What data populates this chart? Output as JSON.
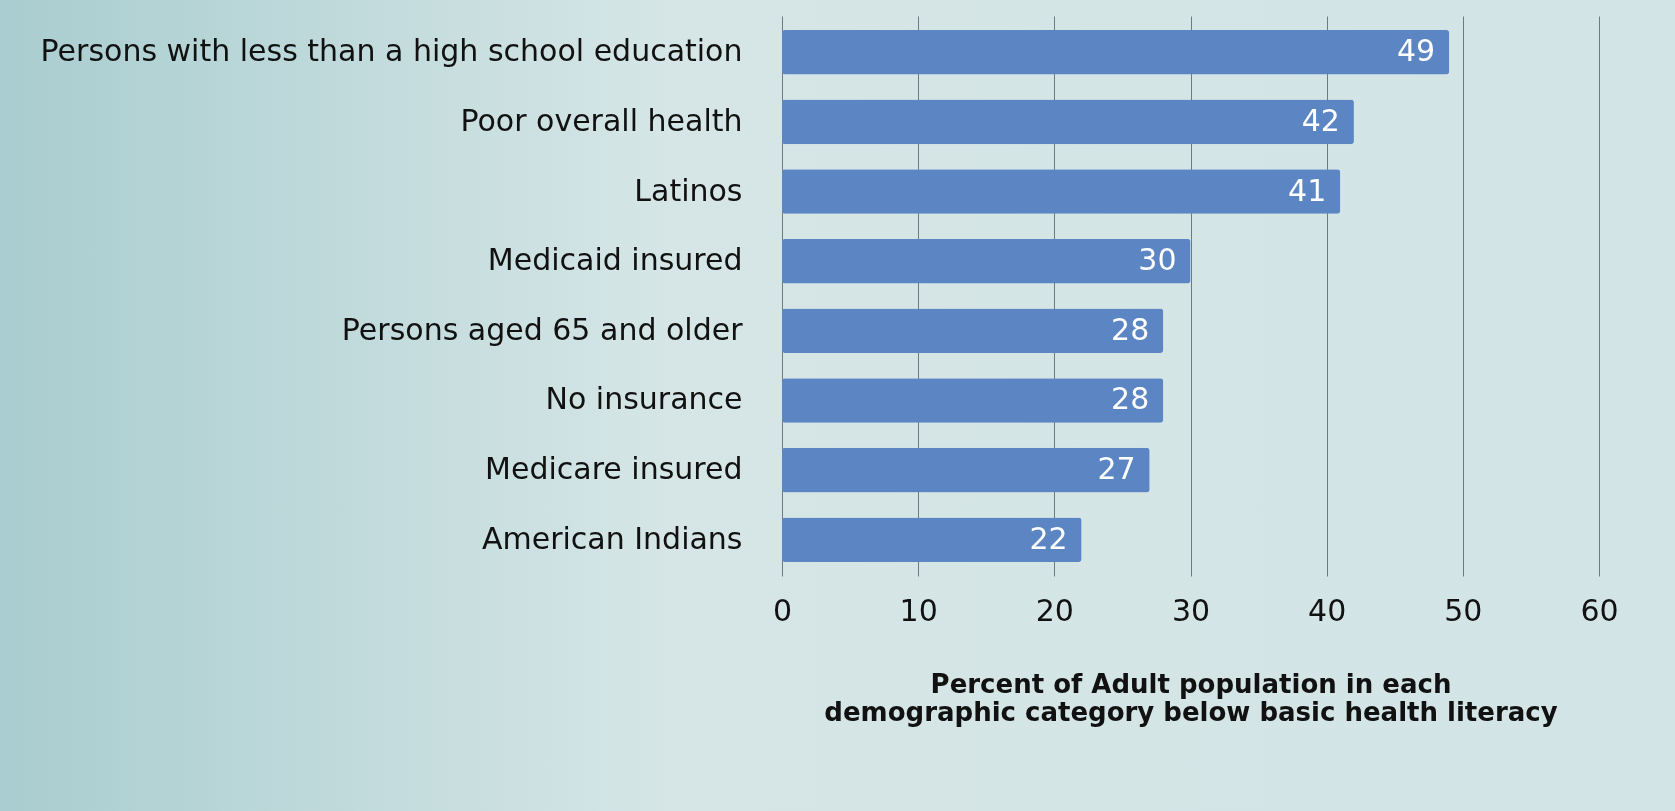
{
  "chart_data": {
    "type": "bar",
    "orientation": "horizontal",
    "categories": [
      "Persons with less than a high school education",
      "Poor overall health",
      "Latinos",
      "Medicaid insured",
      "Persons aged 65 and older",
      "No insurance",
      "Medicare insured",
      "American Indians"
    ],
    "values": [
      49,
      42,
      41,
      30,
      28,
      28,
      27,
      22
    ],
    "color": "#5b86c3",
    "xlabel": "Percent of Adult population in each\ndemographic category below basic health literacy",
    "xlim": [
      0,
      60
    ],
    "xticks": [
      0,
      10,
      20,
      30,
      40,
      50,
      60
    ],
    "grid": "x",
    "data_labels": true
  }
}
